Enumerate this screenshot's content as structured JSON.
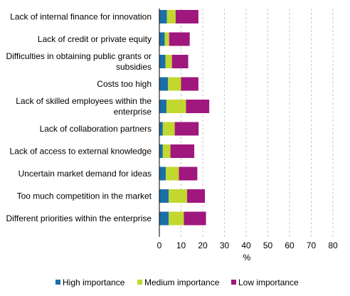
{
  "chart_data": {
    "type": "bar",
    "orientation": "horizontal",
    "stacked": true,
    "categories": [
      [
        "Lack of internal finance for innovation"
      ],
      [
        "Lack of credit or private equity"
      ],
      [
        "Difficulties in obtaining public grants or",
        "subsidies"
      ],
      [
        "Costs too high"
      ],
      [
        "Lack of skilled employees within the",
        "enterprise"
      ],
      [
        "Lack of collaboration partners"
      ],
      [
        "Lack of access to external knowledge"
      ],
      [
        "Uncertain market demand for ideas"
      ],
      [
        "Too much competition in the market"
      ],
      [
        "Different priorities within the enterprise"
      ]
    ],
    "series": [
      {
        "name": "High importance",
        "color": "#1B6FA8",
        "values": [
          3.5,
          2.5,
          2.8,
          4.0,
          3.3,
          1.6,
          1.6,
          3.0,
          4.3,
          4.3
        ]
      },
      {
        "name": "Medium importance",
        "color": "#C3D82E",
        "values": [
          4.0,
          2.0,
          3.0,
          6.0,
          9.0,
          5.5,
          3.5,
          6.0,
          8.5,
          7.0
        ]
      },
      {
        "name": "Low importance",
        "color": "#A0177E",
        "values": [
          10.5,
          9.5,
          7.5,
          8.0,
          10.7,
          11.0,
          11.0,
          8.5,
          8.2,
          10.2
        ]
      }
    ],
    "xlabel": "%",
    "xlim": [
      0,
      80
    ],
    "xticks": [
      0,
      10,
      20,
      30,
      40,
      50,
      60,
      70,
      80
    ],
    "grid": true,
    "legend_position": "bottom"
  }
}
